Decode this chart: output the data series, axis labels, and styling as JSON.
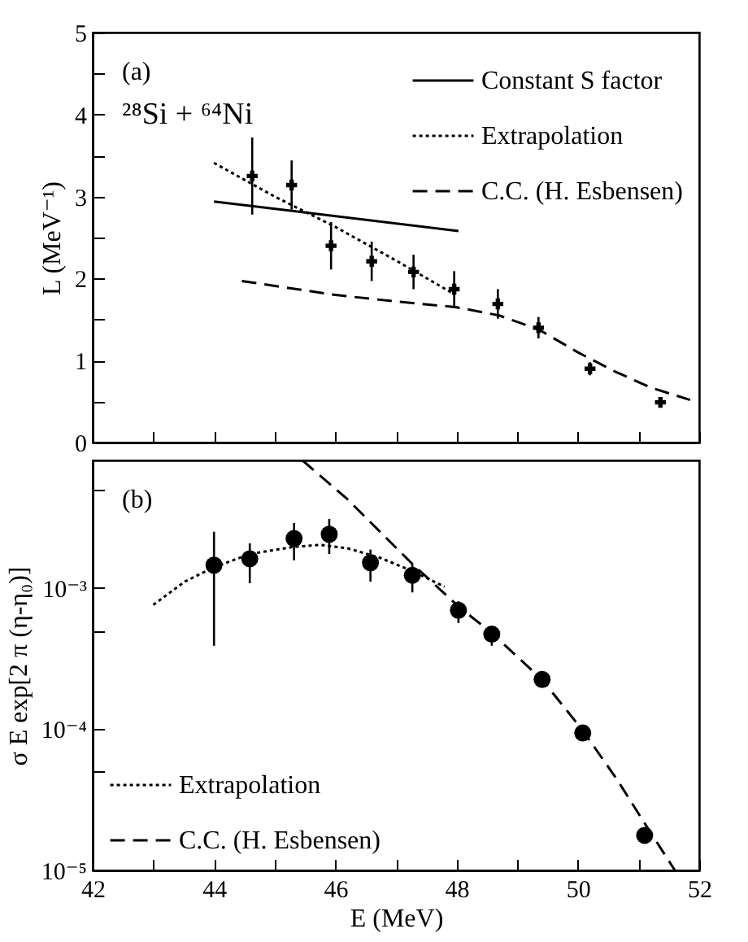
{
  "chart_data": [
    {
      "type": "line",
      "ylabel": "L (MeV⁻¹)",
      "annotations": [
        "(a)",
        "²⁸Si + ⁶⁴Ni"
      ],
      "xlim": [
        42,
        52
      ],
      "xticks": [
        42,
        {
          "value": 43,
          "label": null
        },
        44,
        {
          "value": 45,
          "label": null
        },
        46,
        {
          "value": 47,
          "label": null
        },
        48,
        {
          "value": 49,
          "label": null
        },
        50,
        {
          "value": 51,
          "label": null
        },
        52
      ],
      "ylim": [
        0,
        5
      ],
      "yticks": [
        0,
        {
          "value": 0.5,
          "label": null
        },
        1,
        {
          "value": 1.5,
          "label": null
        },
        2,
        {
          "value": 2.5,
          "label": null
        },
        3,
        {
          "value": 3.5,
          "label": null
        },
        4,
        {
          "value": 4.5,
          "label": null
        },
        5
      ],
      "tick_labels": "y",
      "legend": "top right",
      "series": [
        {
          "type": "scatter",
          "color": "#000000",
          "marker": "cross",
          "x": [
            44.63,
            45.28,
            45.93,
            46.6,
            47.29,
            47.96,
            48.68,
            49.35,
            50.2,
            51.36
          ],
          "values": [
            3.25,
            3.14,
            2.4,
            2.21,
            2.08,
            1.87,
            1.69,
            1.4,
            0.9,
            0.49
          ],
          "errors": [
            0.47,
            0.3,
            0.29,
            0.24,
            0.21,
            0.22,
            0.18,
            0.13,
            0.08,
            0.04
          ]
        },
        {
          "type": "line",
          "name": "Constant S factor",
          "color": "#000000",
          "line_style": "solid",
          "x": [
            44,
            48.03
          ],
          "values": [
            2.94,
            2.58
          ]
        },
        {
          "type": "line",
          "name": "Extrapolation",
          "color": "#000000",
          "line_style": "dotted",
          "x": [
            44,
            45,
            46,
            47,
            47.96
          ],
          "values": [
            3.41,
            3.0,
            2.63,
            2.22,
            1.81
          ]
        },
        {
          "type": "line",
          "name": "C.C. (H. Esbensen)",
          "color": "#000000",
          "line_style": "dashed",
          "x": [
            44.46,
            46,
            47,
            48,
            48.7,
            49.35,
            50,
            50.6,
            51.2,
            51.85
          ],
          "values": [
            1.97,
            1.8,
            1.72,
            1.65,
            1.55,
            1.38,
            1.1,
            0.87,
            0.67,
            0.52
          ]
        }
      ]
    },
    {
      "type": "line",
      "xlabel": "E (MeV)",
      "ylabel": "σ E exp[2 π (η-η₀)]",
      "annotations": [
        "(b)"
      ],
      "log": "y",
      "xlim": [
        42,
        52
      ],
      "xticks": [
        42,
        {
          "value": 43,
          "label": null
        },
        44,
        {
          "value": 45,
          "label": null
        },
        46,
        {
          "value": 47,
          "label": null
        },
        48,
        {
          "value": 49,
          "label": null
        },
        50,
        {
          "value": 51,
          "label": null
        },
        52
      ],
      "ylim": [
        1e-05,
        0.008
      ],
      "yticks": [
        {
          "value": 1e-05,
          "label": "10⁻⁵"
        },
        {
          "value": 5e-05,
          "label": null
        },
        {
          "value": 0.0001,
          "label": "10⁻⁴"
        },
        {
          "value": 0.0005,
          "label": null
        },
        {
          "value": 0.001,
          "label": "10⁻³"
        },
        {
          "value": 0.005,
          "label": null
        }
      ],
      "legend": "bottom left",
      "series": [
        {
          "type": "scatter",
          "color": "#000000",
          "marker": "circle",
          "x": [
            44.0,
            44.59,
            45.32,
            45.9,
            46.58,
            47.27,
            48.03,
            48.58,
            49.41,
            50.08,
            51.1
          ],
          "values": [
            0.00145,
            0.00161,
            0.00224,
            0.0024,
            0.00151,
            0.00123,
            0.000695,
            0.000471,
            0.000225,
            9.4e-05,
            1.77e-05
          ],
          "errors": [
            [
              0.00039,
              0.0025
            ],
            [
              0.00108,
              0.00207
            ],
            [
              0.00157,
              0.00288
            ],
            [
              0.00174,
              0.00308
            ],
            [
              0.00111,
              0.00187
            ],
            [
              0.00093,
              0.00148
            ],
            [
              0.000565,
              0.000805
            ],
            [
              0.00039,
              0.00053
            ],
            null,
            null,
            null
          ]
        },
        {
          "type": "line",
          "name": "Extrapolation",
          "color": "#000000",
          "line_style": "dotted",
          "x": [
            43.0,
            43.52,
            44.0,
            44.59,
            45.3,
            45.75,
            46.2,
            46.73,
            47.27,
            47.8
          ],
          "values": [
            0.00076,
            0.00111,
            0.0014,
            0.00174,
            0.00195,
            0.00202,
            0.00191,
            0.00164,
            0.00132,
            0.00102
          ]
        },
        {
          "type": "line",
          "name": "C.C. (H. Esbensen)",
          "color": "#000000",
          "line_style": "dashed",
          "x": [
            45.46,
            46.2,
            46.73,
            47.27,
            48.03,
            48.58,
            49.41,
            50.08,
            50.66,
            51.1,
            51.6
          ],
          "values": [
            0.008,
            0.00425,
            0.00252,
            0.00148,
            0.00074,
            0.00048,
            0.000224,
            9.8e-05,
            4.3e-05,
            2.16e-05,
            1e-05
          ]
        }
      ]
    }
  ]
}
